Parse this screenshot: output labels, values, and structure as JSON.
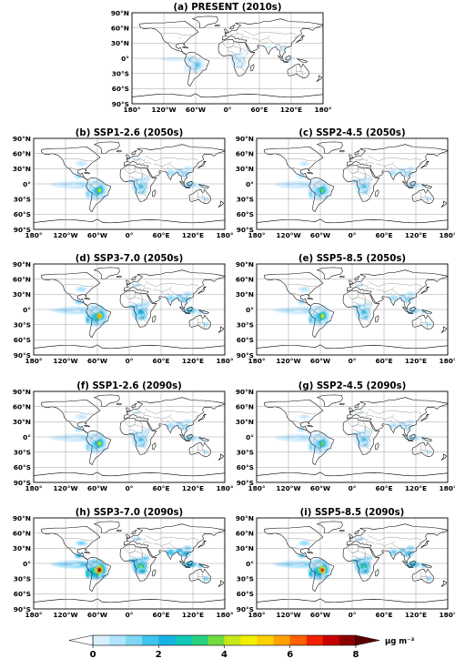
{
  "chart_data": [
    {
      "type": "heatmap",
      "panel": "a",
      "title": "(a) PRESENT (2010s)",
      "intensity": 0.22
    },
    {
      "type": "heatmap",
      "panel": "b",
      "title": "(b) SSP1-2.6 (2050s)",
      "intensity": 0.52
    },
    {
      "type": "heatmap",
      "panel": "c",
      "title": "(c) SSP2-4.5 (2050s)",
      "intensity": 0.45
    },
    {
      "type": "heatmap",
      "panel": "d",
      "title": "(d) SSP3-7.0 (2050s)",
      "intensity": 0.7
    },
    {
      "type": "heatmap",
      "panel": "e",
      "title": "(e) SSP5-8.5 (2050s)",
      "intensity": 0.55
    },
    {
      "type": "heatmap",
      "panel": "f",
      "title": "(f) SSP1-2.6 (2090s)",
      "intensity": 0.52
    },
    {
      "type": "heatmap",
      "panel": "g",
      "title": "(g) SSP2-4.5 (2090s)",
      "intensity": 0.45
    },
    {
      "type": "heatmap",
      "panel": "h",
      "title": "(h) SSP3-7.0 (2090s)",
      "intensity": 1.0
    },
    {
      "type": "heatmap",
      "panel": "i",
      "title": "(i) SSP5-8.5 (2090s)",
      "intensity": 0.85
    }
  ],
  "axes": {
    "lat_ticks": [
      "90°N",
      "60°N",
      "30°N",
      "0°",
      "30°S",
      "60°S",
      "90°S"
    ],
    "lon_ticks": [
      "180°",
      "120°W",
      "60°W",
      "0°",
      "60°E",
      "120°E",
      "180°"
    ],
    "lat_range": [
      -90,
      90
    ],
    "lon_range": [
      -180,
      180
    ],
    "grid": true
  },
  "colorbar": {
    "ticks": [
      "0",
      "2",
      "4",
      "6",
      "8"
    ],
    "range": [
      0,
      8
    ],
    "unit": "μg m⁻³",
    "colors": [
      "#ffffff",
      "#d8f0ff",
      "#b0e4ff",
      "#80d6f5",
      "#40c4ee",
      "#17b2e5",
      "#10c7b8",
      "#28d080",
      "#70dc40",
      "#c8e818",
      "#f0f000",
      "#ffd000",
      "#ffa000",
      "#ff6000",
      "#f02000",
      "#c80000",
      "#8c0000",
      "#5a0000"
    ]
  }
}
